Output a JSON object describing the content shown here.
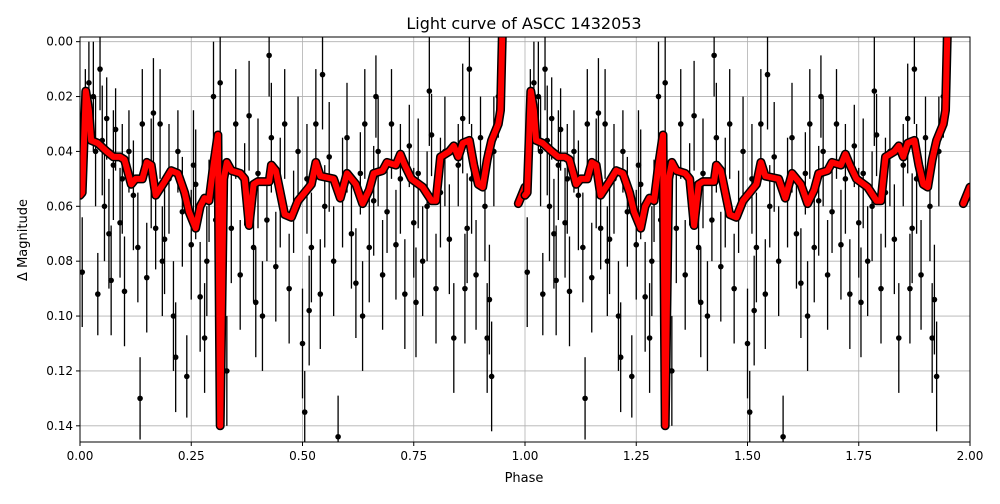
{
  "chart_data": {
    "type": "scatter",
    "title": "Light curve of ASCC 1432053",
    "xlabel": "Phase",
    "ylabel": "Δ Magnitude",
    "xlim": [
      0,
      2
    ],
    "ylim": [
      0.1459,
      -0.0017
    ],
    "y_inverted": true,
    "grid": true,
    "xticks": [
      "0.00",
      "0.25",
      "0.50",
      "0.75",
      "1.00",
      "1.25",
      "1.50",
      "1.75",
      "2.00"
    ],
    "yticks": [
      "0.00",
      "0.02",
      "0.04",
      "0.06",
      "0.08",
      "0.10",
      "0.12",
      "0.14"
    ],
    "points_color": "#000000",
    "model_color": "#ff0000",
    "points_phase_mag_err": [
      [
        0.005,
        0.084,
        0.02
      ],
      [
        0.012,
        0.03,
        0.02
      ],
      [
        0.02,
        0.015,
        0.015
      ],
      [
        0.03,
        0.02,
        0.02
      ],
      [
        0.035,
        0.04,
        0.02
      ],
      [
        0.04,
        0.092,
        0.015
      ],
      [
        0.05,
        0.036,
        0.02
      ],
      [
        0.055,
        0.06,
        0.02
      ],
      [
        0.06,
        0.028,
        0.015
      ],
      [
        0.07,
        0.087,
        0.02
      ],
      [
        0.075,
        0.045,
        0.02
      ],
      [
        0.08,
        0.032,
        0.015
      ],
      [
        0.09,
        0.066,
        0.02
      ],
      [
        0.095,
        0.05,
        0.02
      ],
      [
        0.1,
        0.091,
        0.02
      ],
      [
        0.11,
        0.04,
        0.015
      ],
      [
        0.12,
        0.056,
        0.02
      ],
      [
        0.13,
        0.075,
        0.02
      ],
      [
        0.135,
        0.13,
        0.015
      ],
      [
        0.14,
        0.03,
        0.02
      ],
      [
        0.15,
        0.086,
        0.02
      ],
      [
        0.16,
        0.048,
        0.02
      ],
      [
        0.17,
        0.068,
        0.015
      ],
      [
        0.18,
        0.03,
        0.02
      ],
      [
        0.19,
        0.072,
        0.02
      ],
      [
        0.2,
        0.05,
        0.02
      ],
      [
        0.21,
        0.1,
        0.02
      ],
      [
        0.215,
        0.115,
        0.02
      ],
      [
        0.22,
        0.04,
        0.015
      ],
      [
        0.23,
        0.062,
        0.02
      ],
      [
        0.24,
        0.122,
        0.015
      ],
      [
        0.25,
        0.074,
        0.02
      ],
      [
        0.26,
        0.052,
        0.02
      ],
      [
        0.27,
        0.093,
        0.02
      ],
      [
        0.28,
        0.108,
        0.02
      ],
      [
        0.29,
        0.058,
        0.015
      ],
      [
        0.3,
        0.02,
        0.02
      ],
      [
        0.305,
        0.065,
        0.02
      ],
      [
        0.33,
        0.12,
        0.02
      ],
      [
        0.34,
        0.068,
        0.02
      ],
      [
        0.35,
        0.03,
        0.02
      ],
      [
        0.36,
        0.085,
        0.02
      ],
      [
        0.37,
        0.052,
        0.015
      ],
      [
        0.38,
        0.027,
        0.02
      ],
      [
        0.39,
        0.075,
        0.02
      ],
      [
        0.4,
        0.048,
        0.02
      ],
      [
        0.41,
        0.1,
        0.02
      ],
      [
        0.42,
        0.065,
        0.015
      ],
      [
        0.43,
        0.035,
        0.02
      ],
      [
        0.44,
        0.082,
        0.02
      ],
      [
        0.45,
        0.055,
        0.02
      ],
      [
        0.46,
        0.03,
        0.02
      ],
      [
        0.47,
        0.09,
        0.02
      ],
      [
        0.48,
        0.062,
        0.015
      ],
      [
        0.49,
        0.04,
        0.02
      ],
      [
        0.5,
        0.11,
        0.02
      ],
      [
        0.505,
        0.135,
        0.015
      ],
      [
        0.51,
        0.05,
        0.02
      ],
      [
        0.52,
        0.075,
        0.02
      ],
      [
        0.53,
        0.03,
        0.02
      ],
      [
        0.54,
        0.092,
        0.02
      ],
      [
        0.55,
        0.06,
        0.015
      ],
      [
        0.56,
        0.042,
        0.02
      ],
      [
        0.57,
        0.08,
        0.02
      ],
      [
        0.58,
        0.144,
        0.015
      ],
      [
        0.59,
        0.055,
        0.02
      ],
      [
        0.6,
        0.035,
        0.02
      ],
      [
        0.61,
        0.07,
        0.02
      ],
      [
        0.62,
        0.088,
        0.02
      ],
      [
        0.63,
        0.048,
        0.015
      ],
      [
        0.64,
        0.03,
        0.02
      ],
      [
        0.65,
        0.075,
        0.02
      ],
      [
        0.66,
        0.058,
        0.02
      ],
      [
        0.67,
        0.04,
        0.02
      ],
      [
        0.68,
        0.085,
        0.02
      ],
      [
        0.69,
        0.062,
        0.015
      ],
      [
        0.7,
        0.03,
        0.02
      ],
      [
        0.71,
        0.074,
        0.02
      ],
      [
        0.72,
        0.05,
        0.02
      ],
      [
        0.73,
        0.092,
        0.02
      ],
      [
        0.74,
        0.038,
        0.015
      ],
      [
        0.75,
        0.066,
        0.02
      ],
      [
        0.76,
        0.048,
        0.02
      ],
      [
        0.77,
        0.08,
        0.02
      ],
      [
        0.78,
        0.06,
        0.02
      ],
      [
        0.79,
        0.034,
        0.015
      ],
      [
        0.8,
        0.09,
        0.02
      ],
      [
        0.81,
        0.055,
        0.02
      ],
      [
        0.82,
        0.04,
        0.02
      ],
      [
        0.83,
        0.072,
        0.02
      ],
      [
        0.84,
        0.108,
        0.02
      ],
      [
        0.85,
        0.045,
        0.015
      ],
      [
        0.86,
        0.028,
        0.02
      ],
      [
        0.87,
        0.068,
        0.02
      ],
      [
        0.88,
        0.05,
        0.02
      ],
      [
        0.89,
        0.085,
        0.02
      ],
      [
        0.9,
        0.035,
        0.015
      ],
      [
        0.91,
        0.06,
        0.02
      ],
      [
        0.92,
        0.094,
        0.02
      ],
      [
        0.925,
        0.122,
        0.02
      ],
      [
        0.93,
        0.04,
        0.02
      ],
      [
        0.94,
        0.02,
        0.015
      ],
      [
        0.045,
        0.01,
        0.015
      ],
      [
        0.165,
        0.026,
        0.02
      ],
      [
        0.255,
        0.045,
        0.02
      ],
      [
        0.315,
        0.015,
        0.02
      ],
      [
        0.425,
        0.005,
        0.015
      ],
      [
        0.545,
        0.012,
        0.02
      ],
      [
        0.665,
        0.02,
        0.015
      ],
      [
        0.785,
        0.018,
        0.02
      ],
      [
        0.875,
        0.01,
        0.02
      ],
      [
        0.065,
        0.07,
        0.02
      ],
      [
        0.185,
        0.08,
        0.02
      ],
      [
        0.285,
        0.08,
        0.02
      ],
      [
        0.395,
        0.095,
        0.02
      ],
      [
        0.515,
        0.098,
        0.02
      ],
      [
        0.635,
        0.1,
        0.02
      ],
      [
        0.755,
        0.095,
        0.02
      ],
      [
        0.865,
        0.09,
        0.02
      ],
      [
        0.915,
        0.108,
        0.02
      ]
    ],
    "model_phase_mag": [
      [
        0.0,
        0.056
      ],
      [
        0.005,
        0.055
      ],
      [
        0.013,
        0.018
      ],
      [
        0.02,
        0.025
      ],
      [
        0.025,
        0.036
      ],
      [
        0.04,
        0.037
      ],
      [
        0.06,
        0.04
      ],
      [
        0.075,
        0.042
      ],
      [
        0.09,
        0.042
      ],
      [
        0.1,
        0.043
      ],
      [
        0.115,
        0.052
      ],
      [
        0.125,
        0.05
      ],
      [
        0.14,
        0.05
      ],
      [
        0.15,
        0.044
      ],
      [
        0.16,
        0.045
      ],
      [
        0.17,
        0.056
      ],
      [
        0.19,
        0.051
      ],
      [
        0.205,
        0.047
      ],
      [
        0.22,
        0.048
      ],
      [
        0.235,
        0.055
      ],
      [
        0.245,
        0.062
      ],
      [
        0.26,
        0.068
      ],
      [
        0.27,
        0.06
      ],
      [
        0.28,
        0.057
      ],
      [
        0.29,
        0.058
      ],
      [
        0.3,
        0.045
      ],
      [
        0.31,
        0.034
      ],
      [
        0.315,
        0.14
      ],
      [
        0.323,
        0.05
      ],
      [
        0.33,
        0.044
      ],
      [
        0.34,
        0.047
      ],
      [
        0.36,
        0.048
      ],
      [
        0.37,
        0.05
      ],
      [
        0.38,
        0.067
      ],
      [
        0.39,
        0.052
      ],
      [
        0.4,
        0.051
      ],
      [
        0.425,
        0.051
      ],
      [
        0.43,
        0.045
      ],
      [
        0.44,
        0.047
      ],
      [
        0.46,
        0.063
      ],
      [
        0.475,
        0.064
      ],
      [
        0.49,
        0.058
      ],
      [
        0.5,
        0.056
      ],
      [
        0.52,
        0.052
      ],
      [
        0.53,
        0.044
      ],
      [
        0.54,
        0.049
      ],
      [
        0.57,
        0.05
      ],
      [
        0.585,
        0.057
      ],
      [
        0.6,
        0.048
      ],
      [
        0.62,
        0.052
      ],
      [
        0.635,
        0.059
      ],
      [
        0.65,
        0.054
      ],
      [
        0.66,
        0.048
      ],
      [
        0.68,
        0.047
      ],
      [
        0.69,
        0.044
      ],
      [
        0.71,
        0.045
      ],
      [
        0.72,
        0.041
      ],
      [
        0.73,
        0.045
      ],
      [
        0.745,
        0.05
      ],
      [
        0.77,
        0.053
      ],
      [
        0.79,
        0.058
      ],
      [
        0.8,
        0.058
      ],
      [
        0.81,
        0.042
      ],
      [
        0.83,
        0.04
      ],
      [
        0.84,
        0.038
      ],
      [
        0.85,
        0.042
      ],
      [
        0.86,
        0.037
      ],
      [
        0.875,
        0.036
      ],
      [
        0.885,
        0.045
      ],
      [
        0.895,
        0.052
      ],
      [
        0.905,
        0.053
      ],
      [
        0.915,
        0.043
      ],
      [
        0.925,
        0.036
      ],
      [
        0.94,
        0.03
      ],
      [
        0.945,
        0.025
      ],
      [
        0.95,
        -0.01
      ]
    ],
    "model_tail_phase_mag": [
      [
        0.985,
        0.059
      ],
      [
        1.0,
        0.053
      ]
    ]
  }
}
